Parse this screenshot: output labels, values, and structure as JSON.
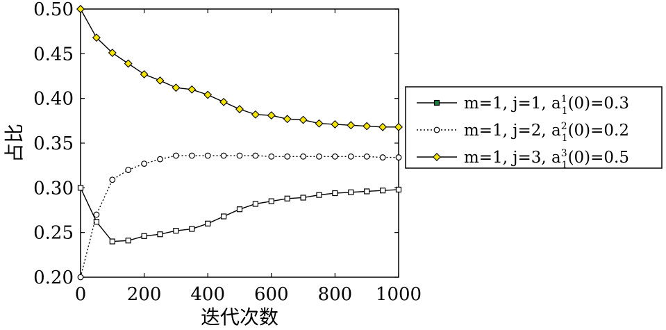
{
  "chart_data": {
    "type": "line",
    "xlabel": "迭代次数",
    "ylabel": "占比",
    "xlim": [
      0,
      1000
    ],
    "ylim": [
      0.2,
      0.5
    ],
    "x_ticks": [
      0,
      200,
      400,
      600,
      800,
      1000
    ],
    "x_tick_labels": [
      "0",
      "200",
      "400",
      "600",
      "800",
      "1000"
    ],
    "y_ticks": [
      0.2,
      0.25,
      0.3,
      0.35,
      0.4,
      0.45,
      0.5
    ],
    "y_tick_labels": [
      "0.20",
      "0.25",
      "0.30",
      "0.35",
      "0.40",
      "0.45",
      "0.50"
    ],
    "grid": false,
    "legend_position": "right",
    "x": [
      0,
      50,
      100,
      150,
      200,
      250,
      300,
      350,
      400,
      450,
      500,
      550,
      600,
      650,
      700,
      750,
      800,
      850,
      900,
      950,
      1000
    ],
    "series": [
      {
        "name": "m=1, j=1, a_1^1(0)=0.3",
        "legend": {
          "pre": "m=1, j=1, a",
          "sup": "1",
          "sub": "1",
          "post": "(0)=0.3"
        },
        "line_style": "solid",
        "marker": "square",
        "color": "#000000",
        "marker_fill": "#ffffff",
        "legend_marker_fill": "#1a7a3a",
        "values": [
          0.3,
          0.262,
          0.24,
          0.241,
          0.246,
          0.248,
          0.252,
          0.254,
          0.26,
          0.268,
          0.276,
          0.282,
          0.285,
          0.288,
          0.289,
          0.292,
          0.294,
          0.295,
          0.296,
          0.297,
          0.298
        ]
      },
      {
        "name": "m=1, j=2, a_1^2(0)=0.2",
        "legend": {
          "pre": "m=1, j=2, a",
          "sup": "2",
          "sub": "1",
          "post": "(0)=0.2"
        },
        "line_style": "dotted",
        "marker": "circle",
        "color": "#000000",
        "marker_fill": "#ffffff",
        "legend_marker_fill": "#ffffff",
        "values": [
          0.2,
          0.27,
          0.309,
          0.32,
          0.327,
          0.332,
          0.336,
          0.336,
          0.336,
          0.336,
          0.336,
          0.336,
          0.335,
          0.335,
          0.335,
          0.335,
          0.335,
          0.335,
          0.335,
          0.334,
          0.334
        ]
      },
      {
        "name": "m=1, j=3, a_1^3(0)=0.5",
        "legend": {
          "pre": "m=1, j=3, a",
          "sup": "3",
          "sub": "1",
          "post": "(0)=0.5"
        },
        "line_style": "solid",
        "marker": "diamond",
        "color": "#000000",
        "marker_fill": "#f5e400",
        "legend_marker_fill": "#f5e400",
        "values": [
          0.5,
          0.468,
          0.451,
          0.439,
          0.427,
          0.42,
          0.412,
          0.41,
          0.404,
          0.396,
          0.388,
          0.382,
          0.381,
          0.377,
          0.376,
          0.372,
          0.371,
          0.37,
          0.369,
          0.368,
          0.368
        ]
      }
    ]
  }
}
